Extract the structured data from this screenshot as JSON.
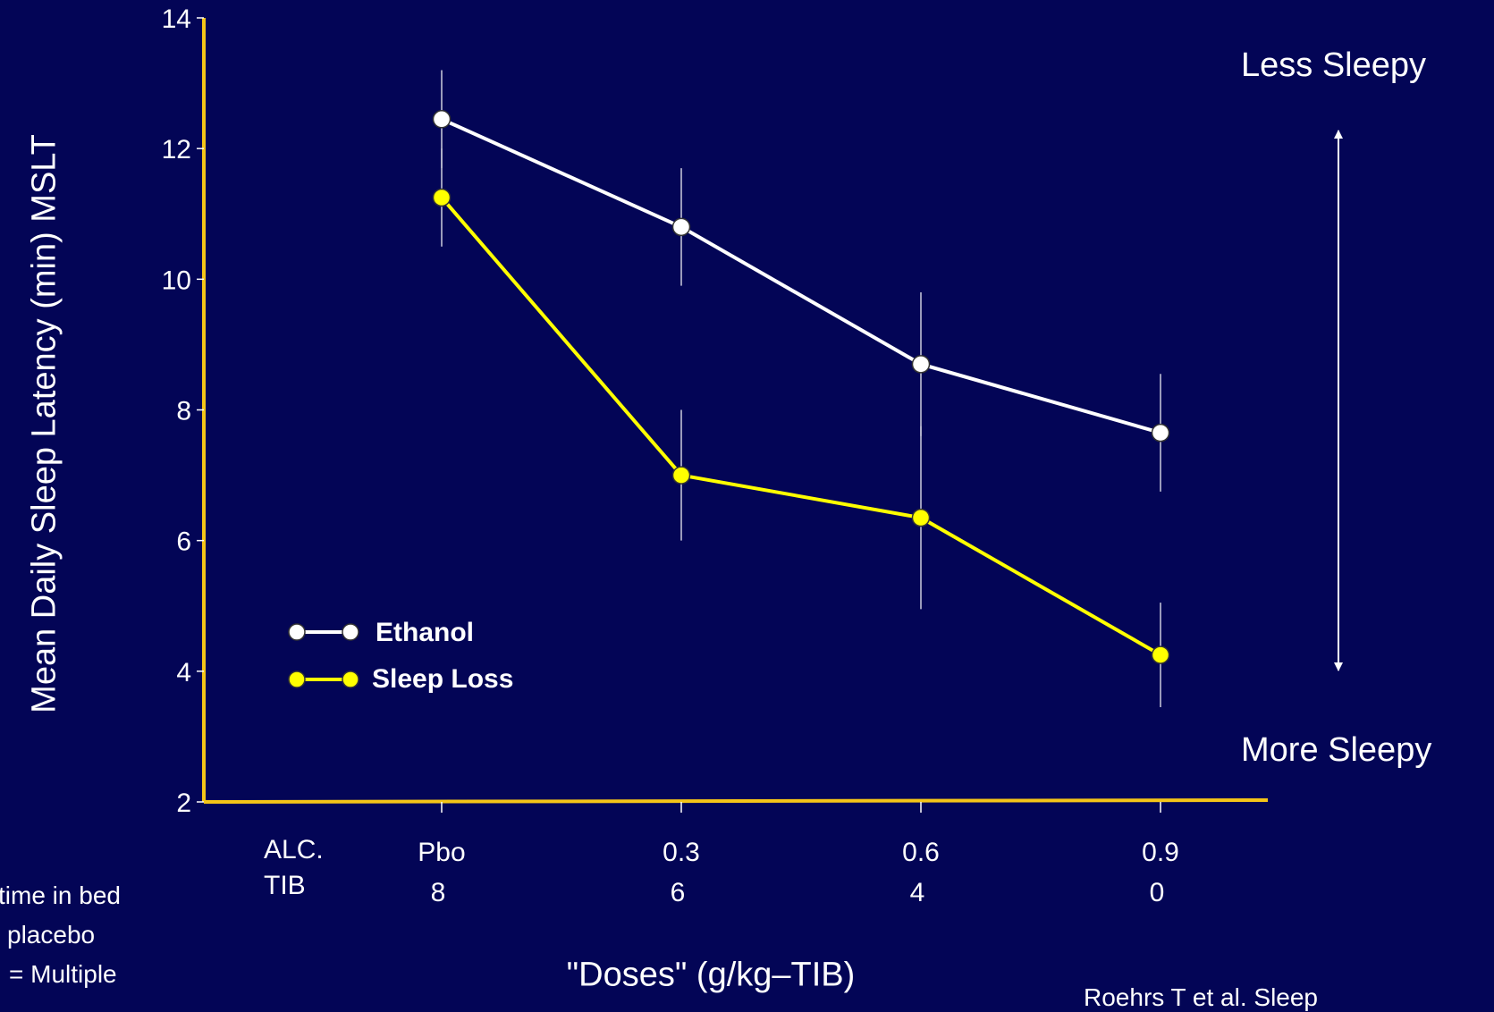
{
  "colors": {
    "background": "#030556",
    "axis": "#f5c518",
    "ethanol": "#ffffff",
    "sleep_loss": "#ffff00"
  },
  "chart_data": {
    "type": "line",
    "ylabel": "Mean Daily Sleep Latency (min) MSLT",
    "xlabel": "\"Doses\" (g/kg–TIB)",
    "ylim": [
      2,
      14
    ],
    "yticks": [
      "2",
      "4",
      "6",
      "8",
      "10",
      "12",
      "14"
    ],
    "x_row_labels": [
      "ALC.",
      "TIB"
    ],
    "categories": [
      {
        "alc": "Pbo",
        "tib": "8"
      },
      {
        "alc": "0.3",
        "tib": "6"
      },
      {
        "alc": "0.6",
        "tib": "4"
      },
      {
        "alc": "0.9",
        "tib": "0"
      }
    ],
    "series": [
      {
        "name": "Ethanol",
        "values": [
          12.45,
          10.8,
          8.7,
          7.65
        ],
        "err": [
          0.75,
          0.9,
          1.1,
          0.9
        ]
      },
      {
        "name": "Sleep Loss",
        "values": [
          11.25,
          7.0,
          6.35,
          4.25
        ],
        "err": [
          0.75,
          1.0,
          1.4,
          0.8
        ]
      }
    ],
    "annotations": {
      "top": "Less Sleepy",
      "bottom": "More Sleepy"
    }
  },
  "notes": {
    "line1": "time in bed",
    "line2": "placebo",
    "line3": "= Multiple",
    "citation": "Roehrs T et al. Sleep"
  }
}
